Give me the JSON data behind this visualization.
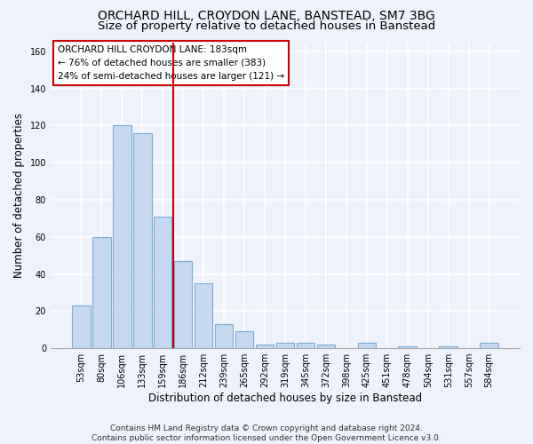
{
  "title": "ORCHARD HILL, CROYDON LANE, BANSTEAD, SM7 3BG",
  "subtitle": "Size of property relative to detached houses in Banstead",
  "xlabel": "Distribution of detached houses by size in Banstead",
  "ylabel": "Number of detached properties",
  "bar_labels": [
    "53sqm",
    "80sqm",
    "106sqm",
    "133sqm",
    "159sqm",
    "186sqm",
    "212sqm",
    "239sqm",
    "265sqm",
    "292sqm",
    "319sqm",
    "345sqm",
    "372sqm",
    "398sqm",
    "425sqm",
    "451sqm",
    "478sqm",
    "504sqm",
    "531sqm",
    "557sqm",
    "584sqm"
  ],
  "bar_values": [
    23,
    60,
    120,
    116,
    71,
    47,
    35,
    13,
    9,
    2,
    3,
    3,
    2,
    0,
    3,
    0,
    1,
    0,
    1,
    0,
    3
  ],
  "bar_color": "#c5d8f0",
  "bar_edge_color": "#7aadd4",
  "subject_line_color": "#cc0000",
  "annotation_text": "ORCHARD HILL CROYDON LANE: 183sqm\n← 76% of detached houses are smaller (383)\n24% of semi-detached houses are larger (121) →",
  "ylim": [
    0,
    165
  ],
  "yticks": [
    0,
    20,
    40,
    60,
    80,
    100,
    120,
    140,
    160
  ],
  "footnote": "Contains HM Land Registry data © Crown copyright and database right 2024.\nContains public sector information licensed under the Open Government Licence v3.0.",
  "bg_color": "#eef2fa",
  "title_fontsize": 10,
  "subtitle_fontsize": 9.5,
  "tick_fontsize": 7,
  "ylabel_fontsize": 8.5,
  "xlabel_fontsize": 8.5,
  "footnote_fontsize": 6.5
}
